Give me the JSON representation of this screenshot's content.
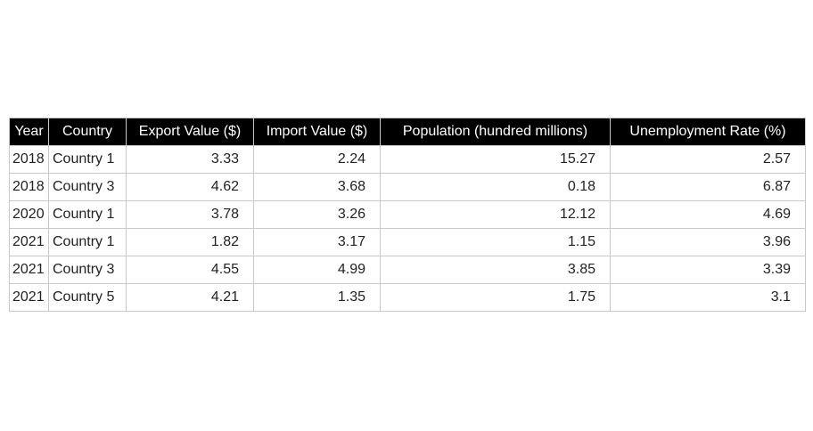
{
  "chart_data": {
    "type": "table",
    "columns": [
      "Year",
      "Country",
      "Export Value ($)",
      "Import Value ($)",
      "Population (hundred millions)",
      "Unemployment Rate (%)"
    ],
    "rows": [
      [
        "2018",
        "Country 1",
        "3.33",
        "2.24",
        "15.27",
        "2.57"
      ],
      [
        "2018",
        "Country 3",
        "4.62",
        "3.68",
        "0.18",
        "6.87"
      ],
      [
        "2020",
        "Country 1",
        "3.78",
        "3.26",
        "12.12",
        "4.69"
      ],
      [
        "2021",
        "Country 1",
        "1.82",
        "3.17",
        "1.15",
        "3.96"
      ],
      [
        "2021",
        "Country 3",
        "4.55",
        "4.99",
        "3.85",
        "3.39"
      ],
      [
        "2021",
        "Country 5",
        "4.21",
        "1.35",
        "1.75",
        "3.1"
      ]
    ],
    "header_background": "#000000",
    "header_text_color": "#ffffff",
    "border_color": "#c8c8c8"
  }
}
